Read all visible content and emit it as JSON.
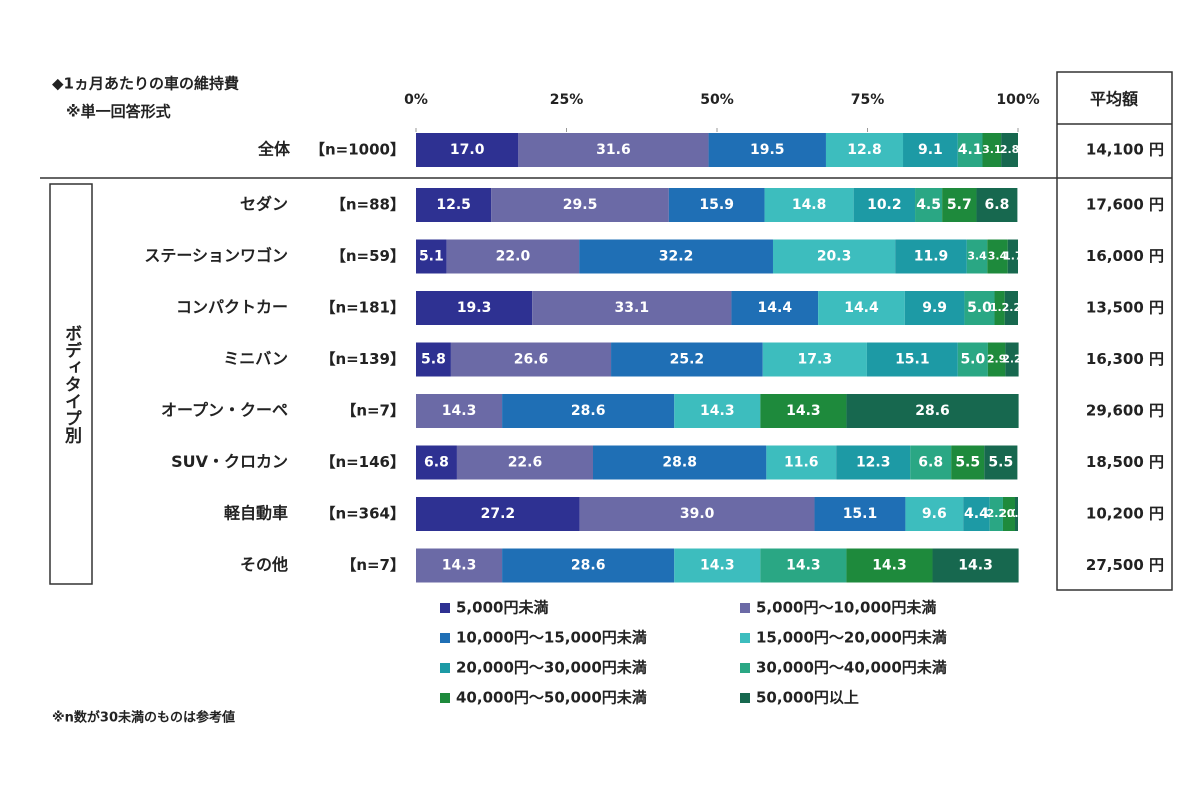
{
  "chart_data": {
    "type": "bar",
    "orientation": "horizontal",
    "stacked": true,
    "title": "◆1ヵ月あたりの車の維持費",
    "subtitle": "※単一回答形式",
    "group_label": "ボディタイプ別",
    "note": "※n数が30未満のものは参考値",
    "average_header": "平均額",
    "categories": [
      "全体",
      "セダン",
      "ステーションワゴン",
      "コンパクトカー",
      "ミニバン",
      "オープン・クーペ",
      "SUV・クロカン",
      "軽自動車",
      "その他"
    ],
    "sample_sizes": [
      "【n=1000】",
      "【n=88】",
      "【n=59】",
      "【n=181】",
      "【n=139】",
      "【n=7】",
      "【n=146】",
      "【n=364】",
      "【n=7】"
    ],
    "averages": [
      "14,100 円",
      "17,600 円",
      "16,000 円",
      "13,500 円",
      "16,300 円",
      "29,600 円",
      "18,500 円",
      "10,200 円",
      "27,500 円"
    ],
    "xlim": [
      0,
      100
    ],
    "xticks": [
      {
        "value": 0,
        "label": "0%"
      },
      {
        "value": 25,
        "label": "25%"
      },
      {
        "value": 50,
        "label": "50%"
      },
      {
        "value": 75,
        "label": "75%"
      },
      {
        "value": 100,
        "label": "100%"
      }
    ],
    "series": [
      {
        "name": "5,000円未満",
        "color": "#2e3192",
        "values": [
          17.0,
          12.5,
          5.1,
          19.3,
          5.8,
          0,
          6.8,
          27.2,
          0
        ]
      },
      {
        "name": "5,000円～10,000円未満",
        "color": "#6b6aa6",
        "values": [
          31.6,
          29.5,
          22.0,
          33.1,
          26.6,
          14.3,
          22.6,
          39.0,
          14.3
        ]
      },
      {
        "name": "10,000円～15,000円未満",
        "color": "#1f6fb5",
        "values": [
          19.5,
          15.9,
          32.2,
          14.4,
          25.2,
          28.6,
          28.8,
          15.1,
          28.6
        ]
      },
      {
        "name": "15,000円～20,000円未満",
        "color": "#3dbdbe",
        "values": [
          12.8,
          14.8,
          20.3,
          14.4,
          17.3,
          14.3,
          11.6,
          9.6,
          14.3
        ]
      },
      {
        "name": "20,000円～30,000円未満",
        "color": "#1d9aa5",
        "values": [
          9.1,
          10.2,
          11.9,
          9.9,
          15.1,
          0,
          12.3,
          4.4,
          0
        ]
      },
      {
        "name": "30,000円～40,000円未満",
        "color": "#2aa784",
        "values": [
          4.1,
          4.5,
          3.4,
          5.0,
          5.0,
          0,
          6.8,
          2.2,
          14.3
        ]
      },
      {
        "name": "40,000円～50,000円未満",
        "color": "#1e8a3c",
        "values": [
          3.1,
          5.7,
          3.4,
          1.7,
          2.9,
          14.3,
          5.5,
          2.0,
          14.3
        ]
      },
      {
        "name": "50,000円以上",
        "color": "#17684f",
        "values": [
          2.8,
          6.8,
          1.7,
          2.2,
          2.2,
          28.6,
          5.5,
          0.5,
          14.3
        ]
      }
    ]
  }
}
